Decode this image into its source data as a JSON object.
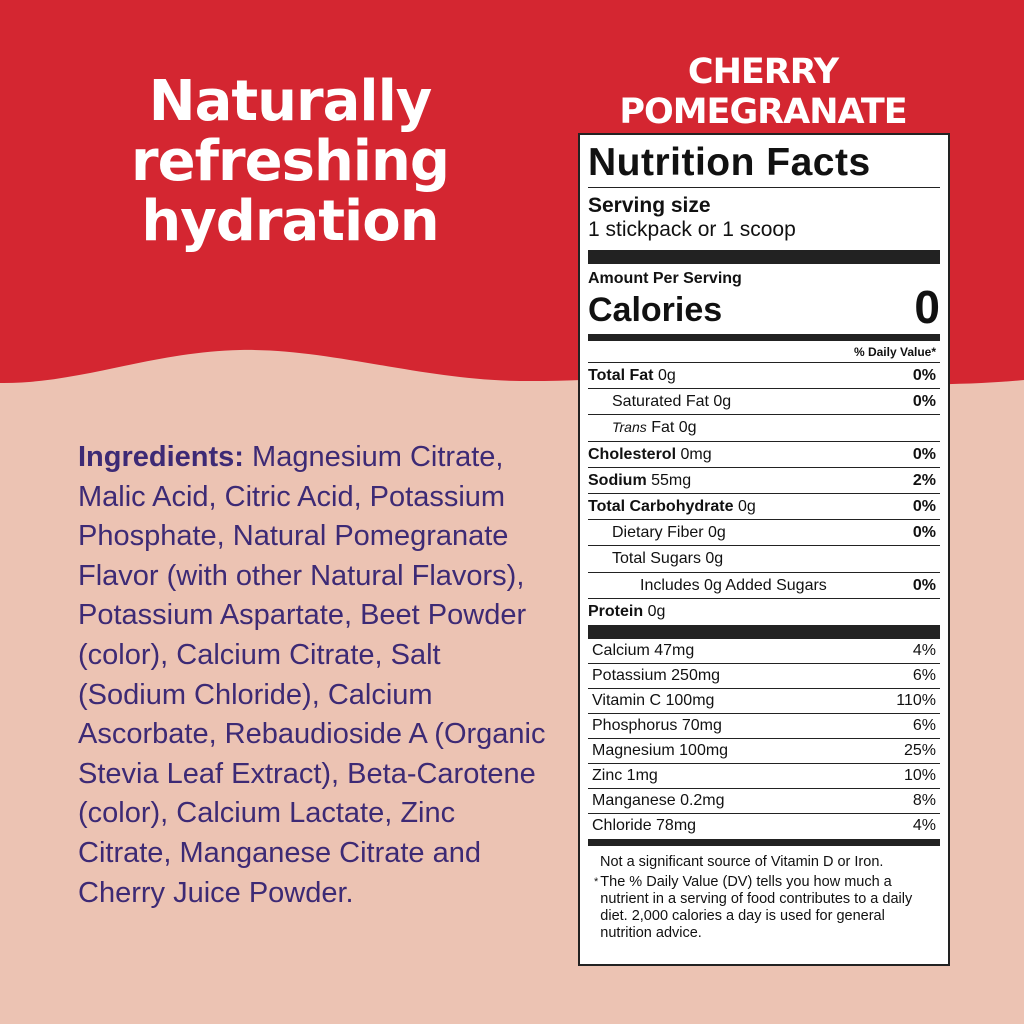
{
  "colors": {
    "red": "#d42631",
    "pink": "#ecc3b3",
    "purple": "#3d2a75"
  },
  "headline": [
    "Naturally",
    "refreshing",
    "hydration"
  ],
  "flavor": "CHERRY POMEGRANATE",
  "ingredients": {
    "label": "Ingredients:",
    "text": "Magnesium Citrate, Malic Acid, Citric Acid, Potassium Phosphate, Natural Pomegranate Flavor (with other Natural Flavors), Potassium Aspartate, Beet Powder (color), Calcium Citrate, Salt (Sodium Chloride), Calcium Ascorbate, Rebaudioside A (Organic Stevia Leaf Extract), Beta-Carotene (color), Calcium Lactate, Zinc Citrate, Manganese Citrate and Cherry Juice Powder."
  },
  "nutrition": {
    "title": "Nutrition Facts",
    "serving_label": "Serving size",
    "serving_value": "1 stickpack or 1 scoop",
    "amount_per_serving": "Amount Per Serving",
    "calories_label": "Calories",
    "calories_value": "0",
    "dv_header": "% Daily Value*",
    "rows": [
      {
        "name": "Total Fat",
        "amount": "0g",
        "dv": "0%"
      },
      {
        "name": "Saturated Fat",
        "amount": "0g",
        "dv": "0%"
      },
      {
        "name": "Trans",
        "amount": "Fat 0g",
        "dv": ""
      },
      {
        "name": "Cholesterol",
        "amount": "0mg",
        "dv": "0%"
      },
      {
        "name": "Sodium",
        "amount": "55mg",
        "dv": "2%"
      },
      {
        "name": "Total Carbohydrate",
        "amount": "0g",
        "dv": "0%"
      },
      {
        "name": "Dietary Fiber",
        "amount": "0g",
        "dv": "0%"
      },
      {
        "name": "Total Sugars",
        "amount": "0g",
        "dv": ""
      },
      {
        "name": "Includes 0g Added Sugars",
        "amount": "",
        "dv": "0%"
      },
      {
        "name": "Protein",
        "amount": "0g",
        "dv": ""
      }
    ],
    "minerals": [
      {
        "name": "Calcium 47mg",
        "dv": "4%"
      },
      {
        "name": "Potassium 250mg",
        "dv": "6%"
      },
      {
        "name": "Vitamin C 100mg",
        "dv": "110%"
      },
      {
        "name": "Phosphorus 70mg",
        "dv": "6%"
      },
      {
        "name": "Magnesium 100mg",
        "dv": "25%"
      },
      {
        "name": "Zinc 1mg",
        "dv": "10%"
      },
      {
        "name": "Manganese 0.2mg",
        "dv": "8%"
      },
      {
        "name": "Chloride 78mg",
        "dv": "4%"
      }
    ],
    "footnote1": "Not a significant source of Vitamin D or Iron.",
    "footnote_star": "*",
    "footnote2": "The % Daily Value (DV) tells you how much a nutrient in a serving of food contributes to a daily diet. 2,000 calories a day is used for general nutrition advice."
  }
}
